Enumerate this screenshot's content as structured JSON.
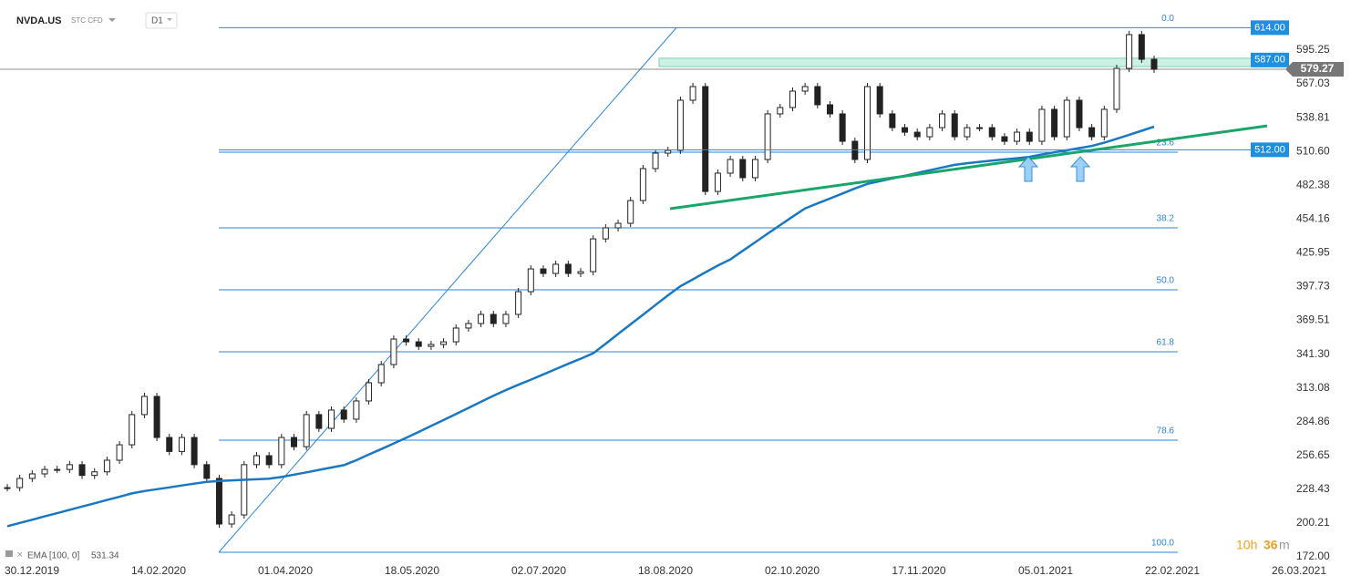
{
  "header": {
    "symbol": "NVDA.US",
    "instrument": "STC CFD",
    "interval": "D1"
  },
  "chart_data": {
    "type": "candlestick",
    "x_labels": [
      "30.12.2019",
      "14.02.2020",
      "01.04.2020",
      "18.05.2020",
      "02.07.2020",
      "18.08.2020",
      "02.10.2020",
      "17.11.2020",
      "05.01.2021",
      "22.02.2021",
      "26.03.2021"
    ],
    "close": [
      229.8,
      237.5,
      241.3,
      245,
      245,
      249,
      240,
      243,
      252.7,
      265.6,
      290.8,
      306,
      271.7,
      260,
      271.7,
      249,
      237.5,
      199.4,
      207,
      249,
      256.5,
      249,
      271.7,
      264,
      290.8,
      279.3,
      294.6,
      287,
      302.2,
      317.4,
      332.6,
      353.9,
      351.6,
      347.8,
      349.4,
      351.6,
      363.1,
      366.9,
      374.5,
      366.9,
      374.5,
      393.5,
      412.5,
      408.7,
      416.4,
      408.7,
      410.2,
      437.6,
      446.8,
      450.6,
      469.6,
      496.3,
      509.2,
      511.5,
      553.4,
      564.8,
      477.2,
      492.5,
      503.9,
      488.7,
      503.9,
      542,
      547.3,
      561,
      564.8,
      549.6,
      542,
      519.1,
      503.9,
      564.8,
      542,
      530.5,
      526.7,
      522.9,
      530.5,
      542,
      522.9,
      530.5,
      530.5,
      522.9,
      519.1,
      526.7,
      519.1,
      545.8,
      522.9,
      553.4,
      530.5,
      522.9,
      545.8,
      580,
      608.2,
      587.6,
      579.27
    ],
    "ylim": [
      165.15,
      637.12
    ],
    "yticks": [
      {
        "value": 172,
        "label": "172.00"
      },
      200.21,
      228.43,
      256.65,
      284.86,
      313.08,
      {
        "value": 341.3,
        "label": "341.30"
      },
      369.51,
      397.73,
      425.95,
      454.16,
      482.38,
      {
        "value": 510.6,
        "label": "510.60"
      },
      538.81,
      567.03,
      595.25
    ],
    "ema": {
      "name": "EMA [100, 0]",
      "color": "#1a78c2",
      "values": [
        197.6,
        200.3,
        203,
        205.8,
        208.5,
        211.3,
        214,
        216.7,
        219.5,
        222.2,
        225,
        227,
        228.5,
        230,
        231.6,
        233.1,
        234.6,
        235.4,
        235.9,
        236.3,
        236.8,
        237.3,
        238.7,
        240.7,
        242.6,
        244.6,
        246.6,
        248.6,
        252.7,
        257.4,
        262,
        266.7,
        271.4,
        276.3,
        281.3,
        286.3,
        291.4,
        296.4,
        301.5,
        306.5,
        311.3,
        315.7,
        320,
        324.4,
        328.8,
        333.2,
        337.5,
        342,
        350,
        358.1,
        366.2,
        374.2,
        382.3,
        390.4,
        398.1,
        403.8,
        409.6,
        415.3,
        420.4,
        427.6,
        434.7,
        441.9,
        449.1,
        456.2,
        463,
        467.2,
        471.3,
        475.5,
        479.7,
        483.5,
        485.8,
        488.1,
        490.3,
        492.6,
        494.9,
        497.2,
        499.4,
        500.8,
        501.9,
        502.9,
        504,
        505,
        506.1,
        508.1,
        509.9,
        511.6,
        513.4,
        515.2,
        517.9,
        521.2,
        524.5,
        527.9,
        531.34
      ]
    },
    "fib_levels": [
      {
        "level": {
          "value": 0,
          "label": "0.0"
        },
        "price": 614
      },
      {
        "level": 23.6,
        "price": 510
      },
      {
        "level": 38.2,
        "price": 446.8
      },
      {
        "level": {
          "value": 50,
          "label": "50.0"
        },
        "price": 395
      },
      {
        "level": 61.8,
        "price": 343.3
      },
      {
        "level": 78.6,
        "price": 269.4
      },
      {
        "level": {
          "value": 100,
          "label": "100.0"
        },
        "price": 175.8
      }
    ],
    "price_tags": [
      {
        "value": 614,
        "label": "614.00"
      },
      {
        "value": 512,
        "label": "512.00"
      }
    ],
    "zone": {
      "tag": {
        "value": 587,
        "label": "587.00"
      },
      "range": [
        581.5,
        588.5
      ]
    },
    "trendline": [
      462.8,
      532
    ]
  },
  "timer": {
    "hours": "10h",
    "minutes": "36",
    "unit": "m"
  }
}
